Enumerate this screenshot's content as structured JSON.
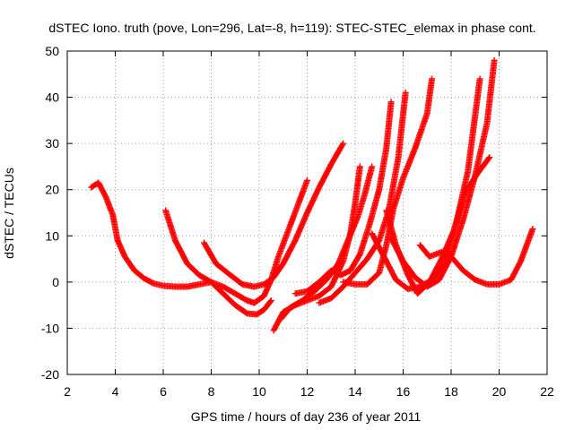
{
  "chart_data": {
    "type": "scatter",
    "title": "dSTEC Iono. truth (pove, Lon=296, Lat=-8, h=119): STEC-STEC_elemax in phase cont.",
    "xlabel": "GPS time / hours of day 236 of year 2011",
    "ylabel": "dSTEC  / TECUs",
    "xlim": [
      2,
      22
    ],
    "ylim": [
      -20,
      50
    ],
    "xticks": [
      2,
      4,
      6,
      8,
      10,
      12,
      14,
      16,
      18,
      20,
      22
    ],
    "yticks": [
      -20,
      -10,
      0,
      10,
      20,
      30,
      40,
      50
    ],
    "grid": true,
    "marker": "+",
    "color": "#ff0000",
    "series": [
      {
        "x": [
          3.0,
          3.3,
          3.6,
          3.9,
          4.1,
          4.4,
          4.8,
          5.2,
          5.6,
          6.0,
          6.5,
          7.0,
          7.5,
          8.0,
          8.5,
          9.0,
          9.5,
          9.8,
          10.2,
          10.5,
          10.8,
          11.2,
          11.6,
          12.0
        ],
        "y": [
          20.5,
          21.5,
          18.5,
          14.5,
          9.0,
          5.5,
          2.5,
          0.8,
          -0.3,
          -0.8,
          -1.0,
          -1.0,
          -0.5,
          0.0,
          -1.0,
          -2.5,
          -4.0,
          -4.5,
          -3.0,
          0.5,
          5.5,
          11.0,
          16.5,
          22.0
        ]
      },
      {
        "x": [
          6.1,
          6.5,
          7.0,
          7.5,
          8.0,
          8.5,
          9.0,
          9.5,
          9.9,
          10.2,
          10.5
        ],
        "y": [
          15.5,
          9.0,
          4.0,
          1.5,
          0.0,
          -2.5,
          -5.0,
          -6.8,
          -7.0,
          -6.0,
          -4.0
        ]
      },
      {
        "x": [
          7.7,
          8.2,
          8.8,
          9.3,
          9.8,
          10.2,
          10.6,
          11.0,
          11.5,
          12.0,
          12.5,
          13.0,
          13.5
        ],
        "y": [
          8.5,
          4.0,
          1.5,
          -0.5,
          -1.0,
          -0.5,
          1.0,
          4.0,
          9.0,
          15.0,
          20.5,
          25.5,
          30.0
        ]
      },
      {
        "x": [
          10.6,
          11.0,
          11.5,
          12.0,
          12.5,
          13.0,
          13.5,
          13.8,
          14.0,
          14.2
        ],
        "y": [
          -10.5,
          -6.5,
          -5.0,
          -4.0,
          -3.0,
          -1.0,
          4.5,
          10.5,
          17.0,
          25.0
        ]
      },
      {
        "x": [
          10.9,
          11.3,
          11.8,
          12.3,
          12.8,
          13.3,
          13.7,
          14.1,
          14.4,
          14.7
        ],
        "y": [
          -8.0,
          -5.5,
          -4.0,
          -2.0,
          0.5,
          4.0,
          9.0,
          14.0,
          19.0,
          25.0
        ]
      },
      {
        "x": [
          11.5,
          12.0,
          12.5,
          13.0,
          13.4,
          13.8,
          14.2,
          14.6,
          15.0,
          15.3,
          15.5
        ],
        "y": [
          -2.5,
          -2.0,
          0.0,
          2.5,
          1.5,
          2.5,
          6.0,
          12.5,
          20.0,
          29.0,
          39.0
        ]
      },
      {
        "x": [
          12.5,
          13.0,
          13.5,
          14.0,
          14.5,
          15.0,
          15.4,
          15.8,
          16.1
        ],
        "y": [
          -4.5,
          -3.5,
          -1.0,
          2.0,
          5.0,
          9.0,
          15.5,
          27.0,
          41.0
        ]
      },
      {
        "x": [
          13.5,
          14.0,
          14.5,
          15.0,
          15.3,
          15.6,
          16.0,
          16.5,
          17.0,
          17.2
        ],
        "y": [
          0.0,
          -0.5,
          -0.5,
          2.0,
          8.0,
          16.0,
          22.5,
          29.0,
          36.5,
          44.0
        ]
      },
      {
        "x": [
          14.7,
          15.2,
          15.7,
          16.2,
          16.7,
          17.2,
          17.7,
          18.2,
          18.7,
          19.2
        ],
        "y": [
          10.5,
          5.5,
          0.5,
          -1.5,
          -1.0,
          0.5,
          3.5,
          12.5,
          24.0,
          44.0
        ]
      },
      {
        "x": [
          15.5,
          16.0,
          16.5,
          17.0,
          17.5,
          18.0,
          18.5,
          19.0,
          19.5,
          19.8
        ],
        "y": [
          9.5,
          4.5,
          1.0,
          -1.0,
          0.5,
          5.5,
          13.5,
          23.0,
          34.5,
          48.0
        ]
      },
      {
        "x": [
          15.3,
          15.7,
          16.2,
          16.6,
          17.1,
          17.6,
          18.1,
          18.6,
          19.1,
          19.6
        ],
        "y": [
          15.5,
          8.0,
          1.5,
          -2.5,
          0.0,
          5.0,
          11.0,
          19.5,
          23.5,
          27.0
        ]
      },
      {
        "x": [
          16.7,
          17.1,
          17.6,
          18.0,
          18.5,
          19.0,
          19.5,
          20.0,
          20.5,
          20.9,
          21.4
        ],
        "y": [
          8.0,
          5.5,
          6.5,
          5.5,
          2.5,
          0.5,
          -0.5,
          -0.5,
          0.5,
          4.5,
          11.5
        ]
      }
    ]
  }
}
